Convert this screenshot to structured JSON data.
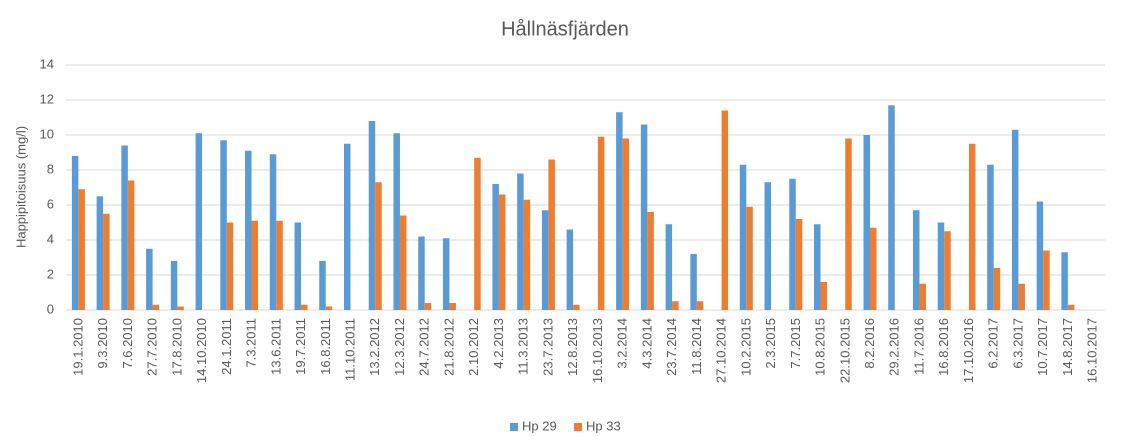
{
  "chart_data": {
    "type": "bar",
    "title": "Hållnäsfjärden",
    "y_label": "Happipitoisuus (mg/l)",
    "categories": [
      "19.1.2010",
      "9.3.2010",
      "7.6.2010",
      "27.7.2010",
      "17.8.2010",
      "14.10.2010",
      "24.1.2011",
      "7.3.2011",
      "13.6.2011",
      "19.7.2011",
      "16.8.2011",
      "11.10.2011",
      "13.2.2012",
      "12.3.2012",
      "24.7.2012",
      "21.8.2012",
      "2.10.2012",
      "4.2.2013",
      "11.3.2013",
      "23.7.2013",
      "12.8.2013",
      "16.10.2013",
      "3.2.2014",
      "4.3.2014",
      "23.7.2014",
      "11.8.2014",
      "27.10.2014",
      "10.2.2015",
      "2.3.2015",
      "7.7.2015",
      "10.8.2015",
      "22.10.2015",
      "8.2.2016",
      "29.2.2016",
      "11.7.2016",
      "16.8.2016",
      "17.10.2016",
      "6.2.2017",
      "6.3.2017",
      "10.7.2017",
      "14.8.2017",
      "16.10.2017"
    ],
    "series": [
      {
        "name": "Hp 29",
        "color": "#5b9bd5",
        "values": [
          8.8,
          6.5,
          9.4,
          3.5,
          2.8,
          10.1,
          9.7,
          9.1,
          8.9,
          5.0,
          2.8,
          9.5,
          10.8,
          10.1,
          4.2,
          4.1,
          null,
          7.2,
          7.8,
          5.7,
          4.6,
          null,
          11.3,
          10.6,
          4.9,
          3.2,
          null,
          8.3,
          7.3,
          7.5,
          4.9,
          null,
          10.0,
          11.7,
          5.7,
          5.0,
          null,
          8.3,
          10.3,
          6.2,
          3.3,
          null
        ]
      },
      {
        "name": "Hp 33",
        "color": "#ed7d31",
        "values": [
          6.9,
          5.5,
          7.4,
          0.3,
          0.2,
          null,
          5.0,
          5.1,
          5.1,
          0.3,
          0.2,
          null,
          7.3,
          5.4,
          0.4,
          0.4,
          8.7,
          6.6,
          6.3,
          8.6,
          0.3,
          9.9,
          9.8,
          5.6,
          0.5,
          0.5,
          11.4,
          5.9,
          null,
          5.2,
          1.6,
          9.8,
          4.7,
          null,
          1.5,
          4.5,
          9.5,
          2.4,
          1.5,
          3.4,
          0.3,
          null
        ]
      }
    ],
    "ylim": [
      0,
      14
    ],
    "yticks": [
      0,
      2,
      4,
      6,
      8,
      10,
      12,
      14
    ],
    "grid": true,
    "legend": "bottom"
  }
}
